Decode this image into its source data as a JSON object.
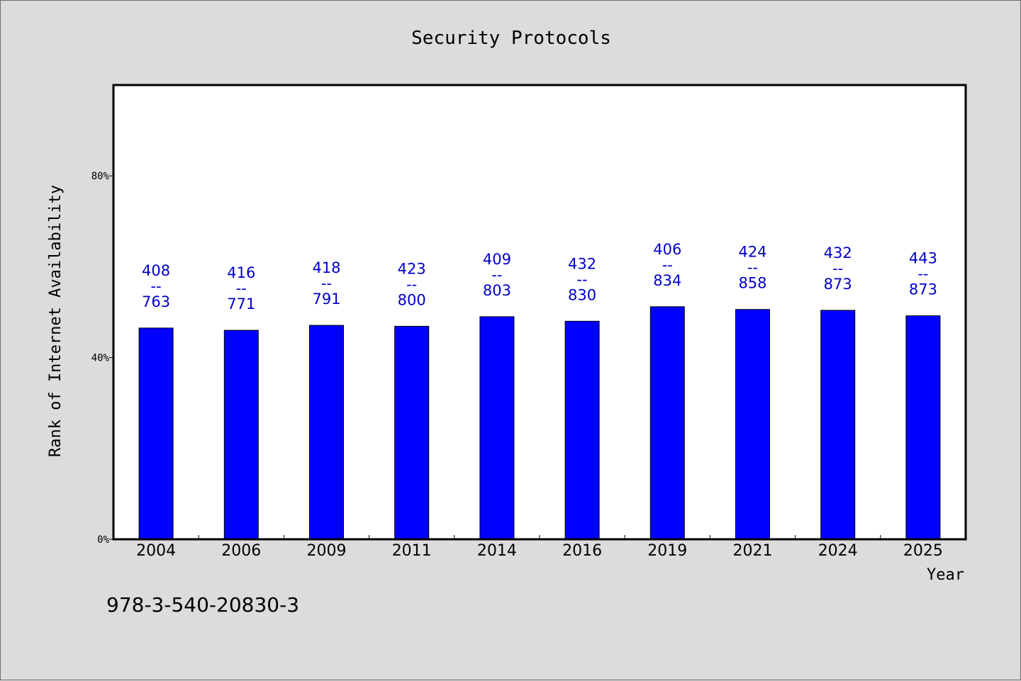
{
  "chart_data": {
    "type": "bar",
    "title": "Security Protocols",
    "xlabel": "Year",
    "ylabel": "Rank of Internet Availability",
    "categories": [
      "2004",
      "2006",
      "2009",
      "2011",
      "2014",
      "2016",
      "2019",
      "2021",
      "2024",
      "2025"
    ],
    "values": [
      46.5,
      46.0,
      47.1,
      46.9,
      49.0,
      48.0,
      51.2,
      50.6,
      50.4,
      49.2
    ],
    "ylim": [
      0,
      100
    ],
    "yticks": [
      0,
      40,
      80
    ],
    "ytick_labels": [
      "0%",
      "40%",
      "80%"
    ],
    "bar_labels": [
      {
        "top": "408",
        "sep": "--",
        "bottom": "763"
      },
      {
        "top": "416",
        "sep": "--",
        "bottom": "771"
      },
      {
        "top": "418",
        "sep": "--",
        "bottom": "791"
      },
      {
        "top": "423",
        "sep": "--",
        "bottom": "800"
      },
      {
        "top": "409",
        "sep": "--",
        "bottom": "803"
      },
      {
        "top": "432",
        "sep": "--",
        "bottom": "830"
      },
      {
        "top": "406",
        "sep": "--",
        "bottom": "834"
      },
      {
        "top": "424",
        "sep": "--",
        "bottom": "858"
      },
      {
        "top": "432",
        "sep": "--",
        "bottom": "873"
      },
      {
        "top": "443",
        "sep": "--",
        "bottom": "873"
      }
    ],
    "bar_color": "#0000ff",
    "label_color": "#0000cc",
    "grid": false,
    "legend": "none"
  },
  "footer": {
    "isbn": "978-3-540-20830-3"
  }
}
